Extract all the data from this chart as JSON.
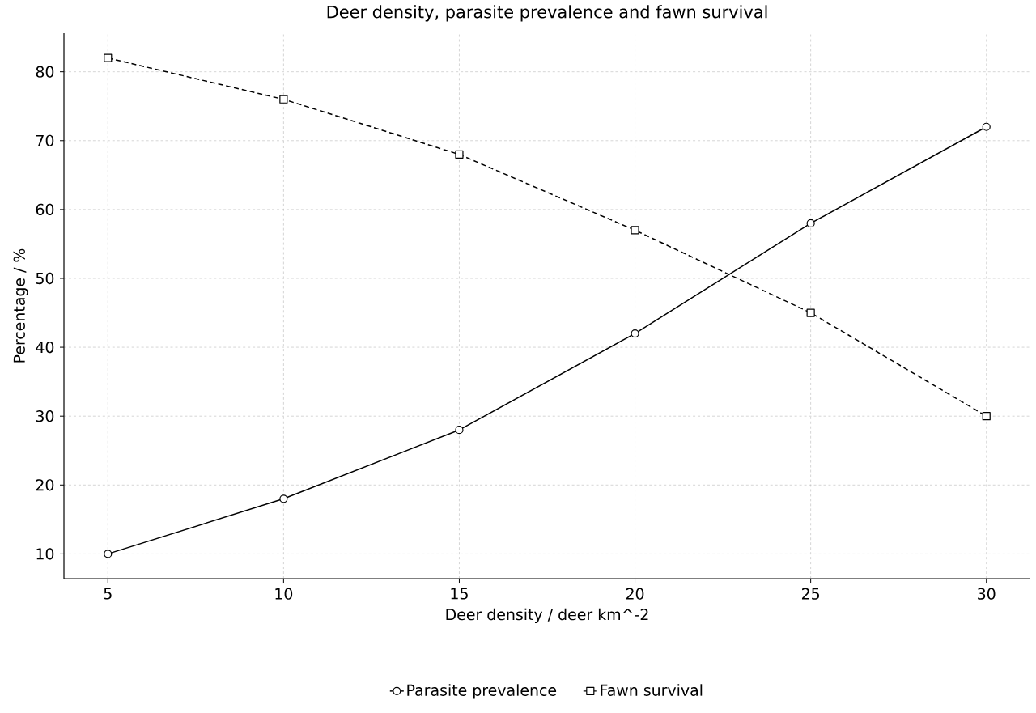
{
  "chart_data": {
    "type": "line",
    "title": "Deer density, parasite prevalence and fawn survival",
    "xlabel": "Deer density / deer km^-2",
    "ylabel": "Percentage / %",
    "x": [
      5,
      10,
      15,
      20,
      25,
      30
    ],
    "series": [
      {
        "name": "Parasite prevalence",
        "color": "#000000",
        "marker": "circle",
        "line_style": "solid",
        "values": [
          10,
          18,
          28,
          42,
          58,
          72
        ]
      },
      {
        "name": "Fawn survival",
        "color": "#000000",
        "marker": "square",
        "line_style": "dashed",
        "values": [
          82,
          76,
          68,
          57,
          45,
          30
        ]
      }
    ],
    "xlim": [
      3.75,
      31.25
    ],
    "ylim": [
      6.4,
      85.6
    ],
    "xticks": [
      5,
      10,
      15,
      20,
      25,
      30
    ],
    "yticks": [
      10,
      20,
      30,
      40,
      50,
      60,
      70,
      80
    ],
    "grid": true,
    "legend": "bottom"
  }
}
